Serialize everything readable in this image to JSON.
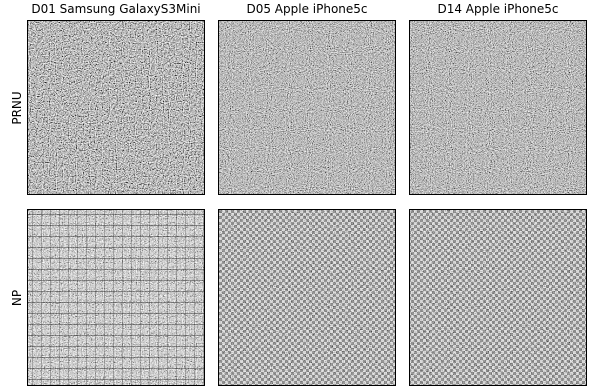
{
  "columns": [
    "D01 Samsung GalaxyS3Mini",
    "D05 Apple iPhone5c",
    "D14 Apple iPhone5c"
  ],
  "rows": [
    "PRNU",
    "NP"
  ]
}
